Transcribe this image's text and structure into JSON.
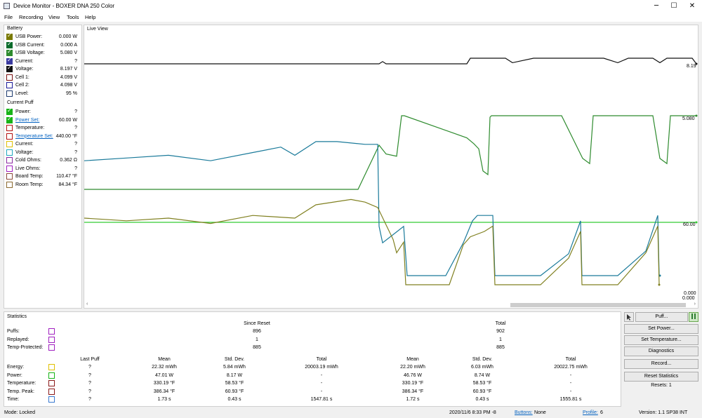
{
  "window": {
    "title": "Device Monitor - BOXER DNA 250 Color",
    "minimize": "─",
    "maximize": "☐",
    "close": "✕"
  },
  "menu": [
    "File",
    "Recording",
    "View",
    "Tools",
    "Help"
  ],
  "battery": {
    "title": "Battery",
    "rows": [
      {
        "label": "USB Power:",
        "value": "0.000 W",
        "color": "#7a7a00",
        "checked": true
      },
      {
        "label": "USB Current:",
        "value": "0.000 A",
        "color": "#0b6b2b",
        "checked": true
      },
      {
        "label": "USB Voltage:",
        "value": "5.080 V",
        "color": "#2e8b2e",
        "checked": true
      },
      {
        "label": "Current:",
        "value": "?",
        "color": "#3a3aa0",
        "checked": true
      },
      {
        "label": "Voltage:",
        "value": "8.197 V",
        "color": "#111111",
        "checked": true
      },
      {
        "label": "Cell 1:",
        "value": "4.099 V",
        "color": "#7a1010",
        "checked": false
      },
      {
        "label": "Cell 2:",
        "value": "4.098 V",
        "color": "#1a1a9a",
        "checked": false
      },
      {
        "label": "Level:",
        "value": "95 %",
        "color": "#1d3b6e",
        "checked": false
      }
    ]
  },
  "current_puff": {
    "title": "Current Puff",
    "rows": [
      {
        "label": "Power:",
        "value": "?",
        "color": "#17b317",
        "checked": true,
        "link": false
      },
      {
        "label": "Power Set:",
        "value": "60.00 W",
        "color": "#17b317",
        "checked": true,
        "link": true
      },
      {
        "label": "Temperature:",
        "value": "?",
        "color": "#b31010",
        "checked": false,
        "link": false
      },
      {
        "label": "Temperature Set:",
        "value": "440.00 °F",
        "color": "#b31010",
        "checked": false,
        "link": true
      },
      {
        "label": "Current:",
        "value": "?",
        "color": "#e0c000",
        "checked": false,
        "link": false
      },
      {
        "label": "Voltage:",
        "value": "?",
        "color": "#20a8c0",
        "checked": false,
        "link": false
      },
      {
        "label": "Cold Ohms:",
        "value": "0.362 Ω",
        "color": "#8a2aa0",
        "checked": false,
        "link": false
      },
      {
        "label": "Live Ohms:",
        "value": "?",
        "color": "#a020c0",
        "checked": false,
        "link": false
      },
      {
        "label": "Board Temp:",
        "value": "110.47 °F",
        "color": "#8b4a3a",
        "checked": false,
        "link": false
      },
      {
        "label": "Room Temp:",
        "value": "84.34 °F",
        "color": "#8b6a30",
        "checked": false,
        "link": false
      }
    ]
  },
  "live_view": {
    "title": "Live View",
    "labels": [
      "8.19",
      "5.080",
      "60.00",
      "0.000",
      "0.000"
    ],
    "colors": {
      "voltage": "#111111",
      "usb_voltage": "#2e8b2e",
      "power_set": "#33cc33",
      "energy": "#1a7a9a",
      "power": "#808020"
    },
    "scroll_left": "‹",
    "scroll_right": "›",
    "chart_data": {
      "type": "line",
      "series": [
        {
          "values": [
            [
              0,
              8.19
            ],
            [
              420,
              8.19
            ],
            [
              425,
              8.21
            ],
            [
              430,
              8.19
            ],
            [
              545,
              8.19
            ],
            [
              550,
              8.24
            ],
            [
              600,
              8.24
            ],
            [
              610,
              8.2
            ],
            [
              640,
              8.24
            ],
            [
              740,
              8.24
            ],
            [
              760,
              8.2
            ],
            [
              775,
              8.24
            ],
            [
              810,
              8.24
            ],
            [
              820,
              8.2
            ],
            [
              830,
              8.24
            ],
            [
              866,
              8.24
            ],
            [
              872,
              8.19
            ]
          ]
        },
        {
          "values": [
            [
              0,
              0
            ],
            [
              390,
              0
            ],
            [
              420,
              0.6
            ],
            [
              430,
              0.48
            ],
            [
              445,
              0.45
            ],
            [
              452,
              1.0
            ],
            [
              456,
              1.0
            ],
            [
              545,
              0.7
            ],
            [
              555,
              0.62
            ],
            [
              562,
              0.55
            ],
            [
              568,
              0.25
            ],
            [
              575,
              0.2
            ],
            [
              578,
              0.98
            ],
            [
              580,
              1.0
            ],
            [
              680,
              1.0
            ],
            [
              710,
              0.42
            ],
            [
              720,
              0.35
            ],
            [
              725,
              1.0
            ],
            [
              810,
              1.0
            ],
            [
              820,
              0.42
            ],
            [
              830,
              0.35
            ],
            [
              835,
              1.0
            ],
            [
              872,
              1.0
            ]
          ]
        },
        {
          "values": [
            [
              0,
              60
            ],
            [
              872,
              60
            ]
          ]
        },
        {
          "values": [
            [
              0,
              22
            ],
            [
              60,
              23
            ],
            [
              120,
              24
            ],
            [
              180,
              22
            ],
            [
              240,
              25
            ],
            [
              280,
              27
            ],
            [
              300,
              24
            ],
            [
              330,
              29
            ],
            [
              360,
              29
            ],
            [
              400,
              28
            ],
            [
              418,
              28
            ],
            [
              420,
              -2
            ],
            [
              425,
              -8
            ],
            [
              445,
              -4
            ],
            [
              455,
              -2
            ],
            [
              460,
              -20
            ],
            [
              490,
              -20
            ],
            [
              515,
              -20
            ],
            [
              540,
              -8
            ],
            [
              553,
              0
            ],
            [
              560,
              2
            ],
            [
              582,
              2
            ],
            [
              585,
              -20
            ],
            [
              650,
              -20
            ],
            [
              690,
              -12
            ],
            [
              707,
              0
            ],
            [
              709,
              -20
            ],
            [
              760,
              -20
            ],
            [
              800,
              -11
            ],
            [
              817,
              2
            ],
            [
              819,
              -20
            ],
            [
              820,
              -20
            ]
          ]
        },
        {
          "values": [
            [
              0,
              5
            ],
            [
              60,
              4
            ],
            [
              120,
              5
            ],
            [
              180,
              3
            ],
            [
              240,
              6
            ],
            [
              300,
              5
            ],
            [
              330,
              10
            ],
            [
              380,
              12
            ],
            [
              400,
              11
            ],
            [
              418,
              9
            ],
            [
              440,
              -3
            ],
            [
              445,
              -8
            ],
            [
              455,
              -4
            ],
            [
              458,
              -20
            ],
            [
              520,
              -20
            ],
            [
              540,
              -5
            ],
            [
              550,
              -2
            ],
            [
              570,
              0
            ],
            [
              582,
              2
            ],
            [
              585,
              -20
            ],
            [
              650,
              -20
            ],
            [
              690,
              -10
            ],
            [
              707,
              0
            ],
            [
              709,
              -20
            ],
            [
              760,
              -20
            ],
            [
              800,
              -8
            ],
            [
              817,
              2
            ],
            [
              819,
              -20
            ]
          ]
        }
      ]
    }
  },
  "statistics": {
    "title": "Statistics",
    "since_reset": "Since Reset",
    "total": "Total",
    "top_rows": [
      {
        "label": "Puffs:",
        "since_reset": "896",
        "total": "902",
        "color": "#a020c0"
      },
      {
        "label": "Replayed:",
        "since_reset": "1",
        "total": "1",
        "color": "#a020c0"
      },
      {
        "label": "Temp-Protected:",
        "since_reset": "885",
        "total": "885",
        "color": "#a020c0"
      }
    ],
    "headers": [
      "Last Puff",
      "Mean",
      "Std. Dev.",
      "Total",
      "Mean",
      "Std. Dev.",
      "Total"
    ],
    "rows": [
      {
        "label": "Energy:",
        "color": "#e0c000",
        "cells": [
          "?",
          "22.32 mWh",
          "5.84 mWh",
          "20003.19 mWh",
          "22.20 mWh",
          "6.03 mWh",
          "20022.75 mWh"
        ]
      },
      {
        "label": "Power:",
        "color": "#17b317",
        "cells": [
          "?",
          "47.01 W",
          "8.17 W",
          "-",
          "46.76 W",
          "8.74 W",
          "-"
        ]
      },
      {
        "label": "Temperature:",
        "color": "#8b1a1a",
        "cells": [
          "?",
          "330.19 °F",
          "58.53 °F",
          "-",
          "330.19 °F",
          "58.53 °F",
          "-"
        ]
      },
      {
        "label": "Temp. Peak:",
        "color": "#8b1a1a",
        "cells": [
          "?",
          "386.34 °F",
          "60.93 °F",
          "-",
          "386.34 °F",
          "60.93 °F",
          "-"
        ]
      },
      {
        "label": "Time:",
        "color": "#3a7ad0",
        "cells": [
          "?",
          "1.73 s",
          "0.43 s",
          "1547.81 s",
          "1.72 s",
          "0.43 s",
          "1555.81 s"
        ]
      }
    ]
  },
  "buttons": {
    "puff": "Puff...",
    "set_power": "Set Power...",
    "set_temperature": "Set Temperature...",
    "diagnostics": "Diagnostics",
    "record": "Record...",
    "reset_statistics": "Reset Statistics",
    "resets": "Resets: 1"
  },
  "status": {
    "mode": "Mode: Locked",
    "datetime": "2020/11/6 8:33 PM -8",
    "buttons_label": "Buttons:",
    "buttons_value": "None",
    "profile_label": "Profile:",
    "profile_value": "6",
    "version": "Version: 1.1 SP38 INT"
  }
}
